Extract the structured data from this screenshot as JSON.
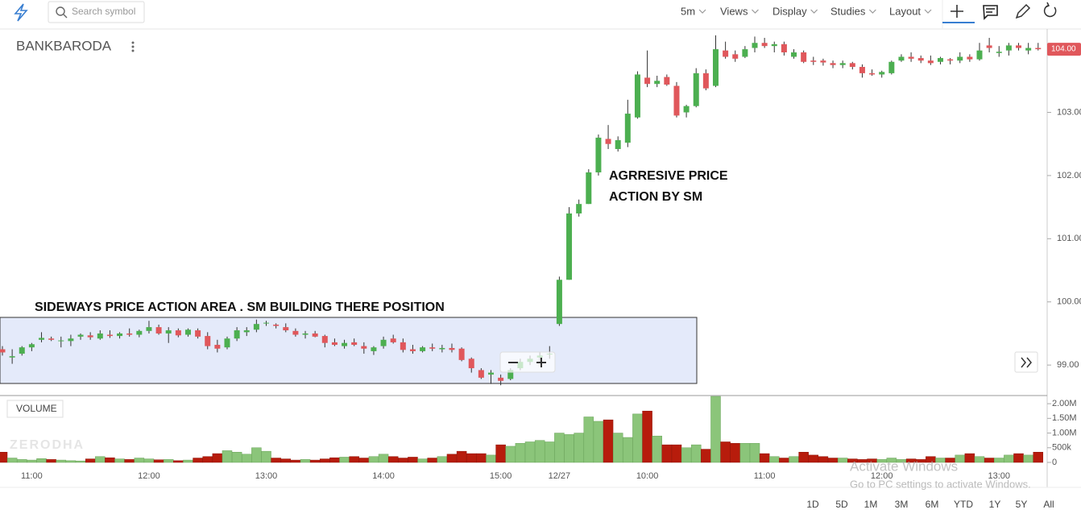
{
  "ui": {
    "search": "Search symbol",
    "menu": [
      "5m",
      "Views",
      "Display",
      "Studies",
      "Layout"
    ],
    "ranges": [
      "1D",
      "5D",
      "1M",
      "3M",
      "6M",
      "YTD",
      "1Y",
      "5Y",
      "All"
    ],
    "watermark": "ZERODHA",
    "activate": [
      "Activate Windows",
      "Go to PC settings to activate Windows."
    ]
  },
  "chart_data": {
    "type": "candlestick",
    "title": "BANKBARODA",
    "annotations": {
      "sideways": "SIDEWAYS PRICE ACTION AREA . SM BUILDING THERE POSITION",
      "aggressive": [
        "AGRRESIVE PRICE",
        "ACTION BY SM"
      ]
    },
    "up_color": "#4caf50",
    "down_color": "#e0575b",
    "categories": [
      null,
      null,
      null,
      "11:00",
      null,
      null,
      null,
      null,
      null,
      null,
      null,
      null,
      null,
      null,
      null,
      "12:00",
      null,
      null,
      null,
      null,
      null,
      null,
      null,
      null,
      null,
      null,
      null,
      "13:00",
      null,
      null,
      null,
      null,
      null,
      null,
      null,
      null,
      null,
      null,
      null,
      "14:00",
      null,
      null,
      null,
      null,
      null,
      null,
      null,
      null,
      null,
      null,
      null,
      "15:00",
      null,
      null,
      null,
      null,
      null,
      "12/27",
      null,
      null,
      null,
      null,
      null,
      null,
      null,
      null,
      "10:00",
      null,
      null,
      null,
      null,
      null,
      null,
      null,
      null,
      null,
      null,
      null,
      "11:00",
      null,
      null,
      null,
      null,
      null,
      null,
      null,
      null,
      null,
      null,
      null,
      "12:00",
      null,
      null,
      null,
      null,
      null,
      null,
      null,
      null,
      null,
      null,
      null,
      "13:00",
      null,
      null,
      null,
      null
    ],
    "ohlc": [
      [
        99.25,
        99.3,
        99.15,
        99.2
      ],
      [
        99.12,
        99.25,
        99.02,
        99.14
      ],
      [
        99.18,
        99.3,
        99.15,
        99.28
      ],
      [
        99.28,
        99.35,
        99.22,
        99.33
      ],
      [
        99.4,
        99.52,
        99.36,
        99.43
      ],
      [
        99.42,
        99.45,
        99.38,
        99.4
      ],
      [
        99.38,
        99.45,
        99.28,
        99.39
      ],
      [
        99.38,
        99.48,
        99.3,
        99.42
      ],
      [
        99.45,
        99.5,
        99.4,
        99.48
      ],
      [
        99.47,
        99.52,
        99.4,
        99.44
      ],
      [
        99.42,
        99.55,
        99.4,
        99.5
      ],
      [
        99.48,
        99.55,
        99.43,
        99.46
      ],
      [
        99.46,
        99.52,
        99.42,
        99.5
      ],
      [
        99.5,
        99.58,
        99.45,
        99.48
      ],
      [
        99.48,
        99.56,
        99.44,
        99.54
      ],
      [
        99.54,
        99.7,
        99.5,
        99.6
      ],
      [
        99.6,
        99.64,
        99.48,
        99.5
      ],
      [
        99.5,
        99.6,
        99.35,
        99.55
      ],
      [
        99.55,
        99.58,
        99.44,
        99.47
      ],
      [
        99.48,
        99.58,
        99.45,
        99.56
      ],
      [
        99.55,
        99.58,
        99.42,
        99.45
      ],
      [
        99.46,
        99.52,
        99.25,
        99.3
      ],
      [
        99.32,
        99.4,
        99.2,
        99.26
      ],
      [
        99.28,
        99.45,
        99.25,
        99.42
      ],
      [
        99.42,
        99.6,
        99.38,
        99.55
      ],
      [
        99.52,
        99.6,
        99.46,
        99.55
      ],
      [
        99.56,
        99.72,
        99.52,
        99.65
      ],
      [
        99.66,
        99.7,
        99.62,
        99.67
      ],
      [
        99.64,
        99.66,
        99.58,
        99.62
      ],
      [
        99.6,
        99.66,
        99.52,
        99.55
      ],
      [
        99.54,
        99.58,
        99.45,
        99.48
      ],
      [
        99.48,
        99.54,
        99.42,
        99.5
      ],
      [
        99.5,
        99.54,
        99.44,
        99.45
      ],
      [
        99.46,
        99.48,
        99.28,
        99.35
      ],
      [
        99.36,
        99.42,
        99.3,
        99.32
      ],
      [
        99.3,
        99.4,
        99.26,
        99.35
      ],
      [
        99.36,
        99.42,
        99.3,
        99.32
      ],
      [
        99.3,
        99.36,
        99.18,
        99.26
      ],
      [
        99.22,
        99.3,
        99.16,
        99.28
      ],
      [
        99.3,
        99.45,
        99.26,
        99.4
      ],
      [
        99.42,
        99.48,
        99.34,
        99.36
      ],
      [
        99.36,
        99.42,
        99.2,
        99.24
      ],
      [
        99.25,
        99.32,
        99.18,
        99.22
      ],
      [
        99.22,
        99.3,
        99.2,
        99.28
      ],
      [
        99.28,
        99.34,
        99.22,
        99.26
      ],
      [
        99.25,
        99.32,
        99.2,
        99.27
      ],
      [
        99.27,
        99.34,
        99.2,
        99.24
      ],
      [
        99.26,
        99.28,
        99.06,
        99.08
      ],
      [
        99.1,
        99.12,
        98.88,
        98.95
      ],
      [
        98.92,
        98.95,
        98.78,
        98.8
      ],
      [
        98.85,
        98.92,
        98.7,
        98.88
      ],
      [
        98.8,
        98.85,
        98.68,
        98.75
      ],
      [
        98.78,
        98.95,
        98.76,
        98.92
      ],
      [
        98.95,
        99.1,
        98.92,
        99.05
      ],
      [
        99.05,
        99.15,
        99,
        99.1
      ],
      [
        99.12,
        99.2,
        99.05,
        99.15
      ],
      [
        99.18,
        99.3,
        99.1,
        99.18
      ],
      [
        99.65,
        100.4,
        99.62,
        100.35
      ],
      [
        100.35,
        101.5,
        100.35,
        101.4
      ],
      [
        101.4,
        101.62,
        101.35,
        101.55
      ],
      [
        101.55,
        102.1,
        101.55,
        102.05
      ],
      [
        102.05,
        102.65,
        102,
        102.6
      ],
      [
        102.58,
        102.8,
        102.42,
        102.5
      ],
      [
        102.42,
        102.62,
        102.38,
        102.56
      ],
      [
        102.52,
        103.2,
        102.45,
        102.98
      ],
      [
        102.92,
        103.65,
        102.9,
        103.6
      ],
      [
        103.55,
        103.98,
        103.4,
        103.45
      ],
      [
        103.45,
        103.58,
        103.4,
        103.5
      ],
      [
        103.56,
        103.6,
        103.42,
        103.44
      ],
      [
        103.42,
        103.48,
        102.92,
        102.95
      ],
      [
        103,
        103.12,
        102.92,
        103.1
      ],
      [
        103.1,
        103.7,
        103.08,
        103.62
      ],
      [
        103.62,
        103.68,
        103.35,
        103.38
      ],
      [
        103.42,
        104.22,
        103.4,
        104
      ],
      [
        103.98,
        104.12,
        103.85,
        103.88
      ],
      [
        103.92,
        103.98,
        103.8,
        103.85
      ],
      [
        103.88,
        104.05,
        103.86,
        104
      ],
      [
        104.02,
        104.2,
        103.95,
        104.1
      ],
      [
        104.1,
        104.18,
        104.02,
        104.05
      ],
      [
        104.05,
        104.12,
        103.95,
        104.08
      ],
      [
        104.08,
        104.12,
        103.9,
        103.95
      ],
      [
        103.88,
        104,
        103.85,
        103.95
      ],
      [
        103.95,
        103.98,
        103.78,
        103.8
      ],
      [
        103.82,
        103.88,
        103.75,
        103.8
      ],
      [
        103.82,
        103.85,
        103.74,
        103.79
      ],
      [
        103.78,
        103.82,
        103.7,
        103.75
      ],
      [
        103.75,
        103.82,
        103.7,
        103.78
      ],
      [
        103.78,
        103.8,
        103.68,
        103.72
      ],
      [
        103.72,
        103.76,
        103.55,
        103.62
      ],
      [
        103.62,
        103.68,
        103.58,
        103.6
      ],
      [
        103.6,
        103.66,
        103.55,
        103.64
      ],
      [
        103.62,
        103.82,
        103.6,
        103.8
      ],
      [
        103.82,
        103.92,
        103.8,
        103.88
      ],
      [
        103.88,
        103.95,
        103.8,
        103.85
      ],
      [
        103.86,
        103.9,
        103.78,
        103.82
      ],
      [
        103.82,
        103.9,
        103.75,
        103.78
      ],
      [
        103.8,
        103.88,
        103.76,
        103.86
      ],
      [
        103.84,
        103.86,
        103.76,
        103.82
      ],
      [
        103.82,
        103.95,
        103.78,
        103.88
      ],
      [
        103.88,
        103.92,
        103.8,
        103.84
      ],
      [
        103.84,
        104.1,
        103.82,
        103.98
      ],
      [
        104.06,
        104.18,
        103.95,
        104.02
      ],
      [
        103.94,
        104.05,
        103.88,
        103.96
      ],
      [
        103.98,
        104.1,
        103.9,
        104.06
      ],
      [
        104.06,
        104.1,
        103.98,
        104.02
      ],
      [
        103.98,
        104.1,
        103.92,
        104.02
      ],
      [
        104.02,
        104.1,
        103.98,
        104
      ]
    ],
    "ylim": [
      98.53,
      104.32
    ],
    "yticks": [
      {
        "value": 103,
        "label": "103.00"
      },
      {
        "value": 102,
        "label": "102.00"
      },
      {
        "value": 101,
        "label": "101.00"
      },
      {
        "value": 100,
        "label": "100.00"
      },
      {
        "value": 99,
        "label": "99.00"
      }
    ],
    "last_price": {
      "value": 104,
      "label": "104.00"
    },
    "grid": false,
    "volume": {
      "title": "VOLUME",
      "ylim": [
        0,
        2250000
      ],
      "yticks": [
        {
          "value": 2000000,
          "label": "2.00M"
        },
        {
          "value": 1500000,
          "label": "1.50M"
        },
        {
          "value": 1000000,
          "label": "1.00M"
        },
        {
          "value": 500000,
          "label": "500k"
        },
        0
      ],
      "up_color": "#8bc57a",
      "down_color": "#b71c0c",
      "values": [
        350000,
        150000,
        100000,
        80000,
        130000,
        100000,
        80000,
        60000,
        50000,
        120000,
        200000,
        160000,
        120000,
        100000,
        150000,
        120000,
        90000,
        100000,
        60000,
        80000,
        150000,
        200000,
        300000,
        400000,
        350000,
        280000,
        500000,
        380000,
        150000,
        120000,
        80000,
        100000,
        80000,
        120000,
        160000,
        180000,
        200000,
        150000,
        200000,
        280000,
        200000,
        150000,
        180000,
        120000,
        150000,
        200000,
        280000,
        380000,
        300000,
        300000,
        250000,
        600000,
        550000,
        650000,
        700000,
        750000,
        700000,
        1000000,
        950000,
        1000000,
        1550000,
        1400000,
        1450000,
        1000000,
        850000,
        1650000,
        1750000,
        900000,
        600000,
        600000,
        500000,
        600000,
        450000,
        2250000,
        700000,
        650000,
        650000,
        650000,
        300000,
        200000,
        150000,
        200000,
        350000,
        250000,
        200000,
        150000,
        150000,
        120000,
        100000,
        120000,
        100000,
        150000,
        100000,
        120000,
        100000,
        200000,
        150000,
        150000,
        250000,
        300000,
        200000,
        150000,
        150000,
        250000,
        300000,
        250000,
        350000
      ]
    }
  }
}
